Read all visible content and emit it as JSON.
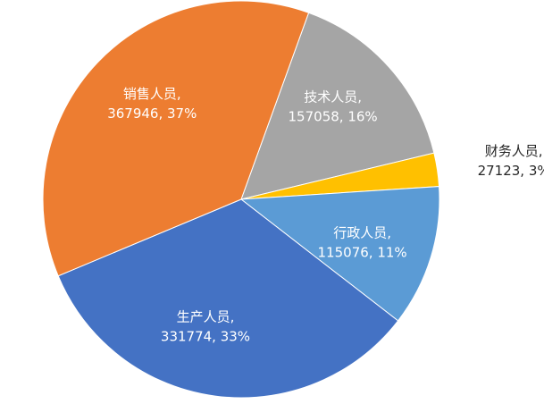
{
  "chart_data": {
    "type": "pie",
    "title": "",
    "start_angle_deg": 70.1,
    "direction": "clockwise",
    "slices": [
      {
        "label": "技术人员",
        "value": 157058,
        "percent": "16%",
        "color": "#a5a5a5",
        "label_position": "inside"
      },
      {
        "label": "财务人员",
        "value": 27123,
        "percent": "3%",
        "color": "#ffc000",
        "label_position": "outside"
      },
      {
        "label": "行政人员",
        "value": 115076,
        "percent": "11%",
        "color": "#5b9bd5",
        "label_position": "inside"
      },
      {
        "label": "生产人员",
        "value": 331774,
        "percent": "33%",
        "color": "#4472c4",
        "label_position": "inside"
      },
      {
        "label": "销售人员",
        "value": 367946,
        "percent": "37%",
        "color": "#ed7d31",
        "label_position": "inside"
      }
    ]
  }
}
